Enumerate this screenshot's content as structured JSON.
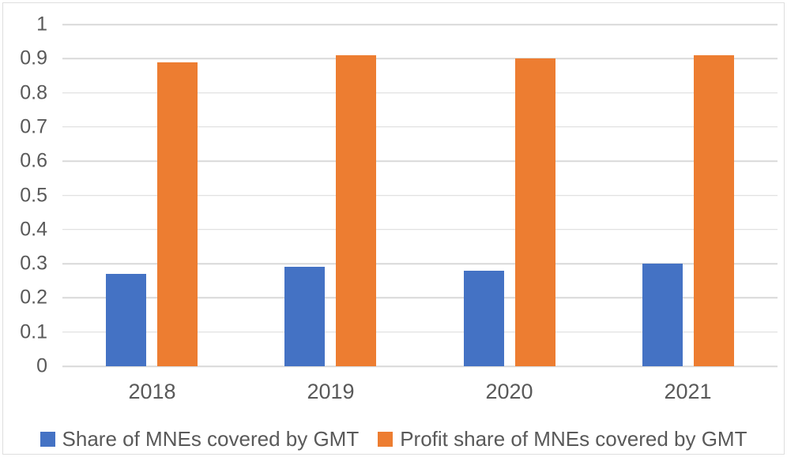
{
  "chart_data": {
    "type": "bar",
    "title": "",
    "xlabel": "",
    "ylabel": "",
    "categories": [
      "2018",
      "2019",
      "2020",
      "2021"
    ],
    "series": [
      {
        "name": "Share of MNEs covered by GMT",
        "color": "#4472C4",
        "values": [
          0.27,
          0.29,
          0.28,
          0.3
        ]
      },
      {
        "name": "Profit share of MNEs covered by GMT",
        "color": "#ED7D31",
        "values": [
          0.89,
          0.91,
          0.9,
          0.91
        ]
      }
    ],
    "ylim": [
      0,
      1
    ],
    "ytick_step": 0.1,
    "yticks": [
      "1",
      "0.9",
      "0.8",
      "0.7",
      "0.6",
      "0.5",
      "0.4",
      "0.3",
      "0.2",
      "0.1",
      "0"
    ],
    "grid": true,
    "legend_position": "bottom",
    "colors": {
      "gridline": "#D9D9D9",
      "axis_line": "#D9D9D9",
      "tick_text": "#595959",
      "background": "#FFFFFF",
      "border": "#DEDEDE"
    }
  }
}
